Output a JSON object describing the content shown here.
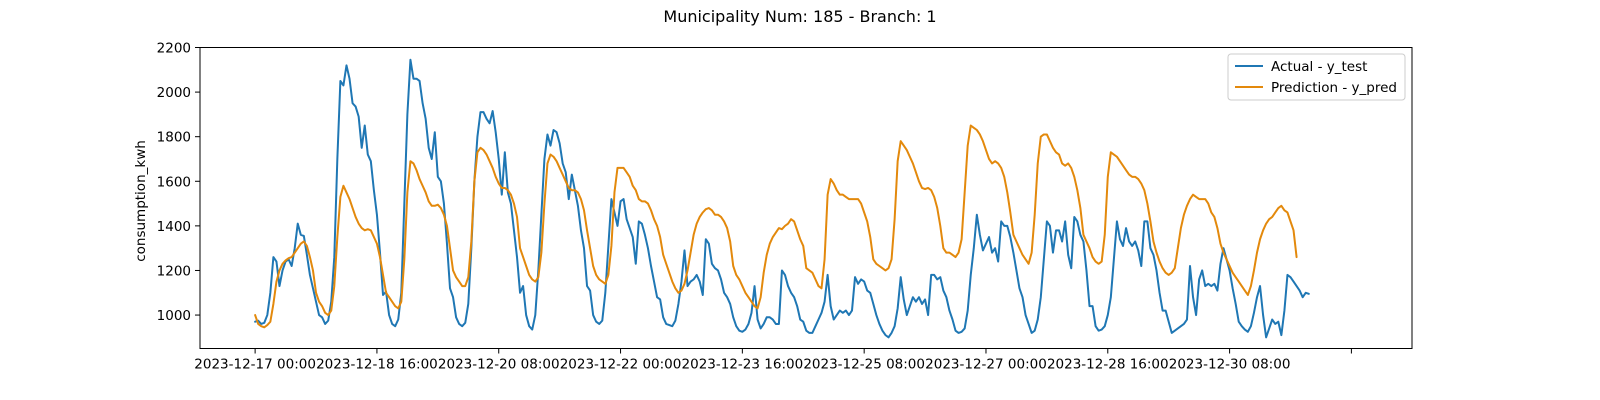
{
  "chart_data": {
    "type": "line",
    "title": "Municipality Num: 185 - Branch: 1",
    "xlabel": "",
    "ylabel": "consumption_kwh",
    "ylim": [
      850,
      2200
    ],
    "yticks": [
      1000,
      1200,
      1400,
      1600,
      1800,
      2000,
      2200
    ],
    "x_start": "2023-12-17 00:00",
    "x_step_hours": 1,
    "x_tick_hours": [
      0,
      40,
      80,
      120,
      160,
      200,
      240,
      280,
      320,
      360
    ],
    "xtick_labels": [
      "2023-12-17 00:00",
      "2023-12-18 16:00",
      "2023-12-20 08:00",
      "2023-12-22 00:00",
      "2023-12-23 16:00",
      "2023-12-25 08:00",
      "2023-12-27 00:00",
      "2023-12-28 16:00",
      "2023-12-30 08:00",
      ""
    ],
    "xlim_hours": [
      -18.1,
      379.9
    ],
    "grid": false,
    "legend_position": "top-right",
    "series": [
      {
        "name": "Actual - y_test",
        "color": "#1f77b4",
        "values": [
          970,
          975,
          960,
          965,
          1000,
          1100,
          1260,
          1240,
          1130,
          1200,
          1240,
          1250,
          1220,
          1300,
          1410,
          1360,
          1355,
          1270,
          1180,
          1120,
          1060,
          1000,
          990,
          960,
          975,
          1060,
          1260,
          1700,
          2050,
          2030,
          2120,
          2060,
          1950,
          1935,
          1890,
          1750,
          1850,
          1720,
          1690,
          1560,
          1450,
          1280,
          1090,
          1105,
          1000,
          960,
          950,
          980,
          1100,
          1500,
          1900,
          2145,
          2060,
          2060,
          2050,
          1950,
          1880,
          1750,
          1700,
          1820,
          1620,
          1600,
          1500,
          1320,
          1120,
          1080,
          990,
          960,
          950,
          965,
          1050,
          1300,
          1600,
          1800,
          1910,
          1910,
          1880,
          1860,
          1915,
          1820,
          1700,
          1540,
          1730,
          1550,
          1500,
          1380,
          1260,
          1100,
          1130,
          1000,
          950,
          935,
          1000,
          1200,
          1450,
          1700,
          1810,
          1760,
          1830,
          1820,
          1770,
          1680,
          1640,
          1520,
          1630,
          1560,
          1490,
          1380,
          1300,
          1130,
          1110,
          1000,
          970,
          960,
          975,
          1100,
          1310,
          1520,
          1460,
          1400,
          1510,
          1520,
          1430,
          1390,
          1350,
          1230,
          1420,
          1410,
          1360,
          1300,
          1220,
          1150,
          1080,
          1070,
          990,
          960,
          955,
          950,
          975,
          1050,
          1150,
          1290,
          1130,
          1150,
          1160,
          1180,
          1150,
          1090,
          1340,
          1320,
          1230,
          1210,
          1200,
          1160,
          1100,
          1080,
          1050,
          990,
          950,
          930,
          925,
          935,
          960,
          1010,
          1130,
          980,
          940,
          960,
          990,
          990,
          980,
          960,
          960,
          1200,
          1180,
          1130,
          1100,
          1080,
          1040,
          980,
          970,
          930,
          920,
          920,
          950,
          980,
          1010,
          1060,
          1180,
          1040,
          980,
          1000,
          1020,
          1010,
          1020,
          1000,
          1020,
          1170,
          1140,
          1160,
          1150,
          1110,
          1100,
          1050,
          1000,
          960,
          930,
          910,
          900,
          920,
          950,
          1030,
          1170,
          1070,
          1000,
          1040,
          1080,
          1060,
          1080,
          1050,
          1070,
          1000,
          1180,
          1180,
          1160,
          1170,
          1110,
          1080,
          1020,
          980,
          930,
          920,
          925,
          940,
          1020,
          1180,
          1300,
          1450,
          1360,
          1290,
          1320,
          1350,
          1280,
          1300,
          1240,
          1420,
          1400,
          1400,
          1350,
          1280,
          1200,
          1120,
          1080,
          1000,
          960,
          920,
          930,
          980,
          1080,
          1250,
          1420,
          1400,
          1280,
          1380,
          1380,
          1330,
          1420,
          1270,
          1210,
          1440,
          1420,
          1360,
          1330,
          1200,
          1040,
          1040,
          950,
          930,
          935,
          950,
          1000,
          1080,
          1250,
          1420,
          1340,
          1310,
          1390,
          1330,
          1310,
          1330,
          1290,
          1220,
          1420,
          1420,
          1300,
          1270,
          1200,
          1100,
          1020,
          1020,
          970,
          920,
          930,
          940,
          950,
          960,
          980,
          1220,
          1080,
          1000,
          1160,
          1200,
          1130,
          1140,
          1130,
          1140,
          1110,
          1230,
          1300,
          1250,
          1200,
          1120,
          1050,
          970,
          950,
          935,
          925,
          950,
          1010,
          1080,
          1130,
          1000,
          900,
          940,
          980,
          960,
          970,
          910,
          1020,
          1180,
          1170,
          1150,
          1130,
          1110,
          1080,
          1100,
          1095
        ]
      },
      {
        "name": "Prediction - y_pred",
        "color": "#e3890c",
        "values": [
          1000,
          960,
          950,
          945,
          955,
          970,
          1050,
          1150,
          1200,
          1230,
          1245,
          1255,
          1260,
          1280,
          1300,
          1320,
          1330,
          1310,
          1260,
          1200,
          1100,
          1060,
          1040,
          1010,
          1000,
          1020,
          1130,
          1350,
          1530,
          1580,
          1550,
          1520,
          1480,
          1440,
          1410,
          1390,
          1380,
          1385,
          1380,
          1350,
          1320,
          1260,
          1180,
          1100,
          1080,
          1060,
          1040,
          1030,
          1060,
          1250,
          1550,
          1690,
          1680,
          1650,
          1610,
          1580,
          1550,
          1510,
          1490,
          1490,
          1495,
          1480,
          1450,
          1400,
          1300,
          1200,
          1170,
          1150,
          1130,
          1130,
          1170,
          1330,
          1600,
          1730,
          1750,
          1740,
          1720,
          1690,
          1660,
          1620,
          1590,
          1570,
          1570,
          1560,
          1540,
          1500,
          1440,
          1300,
          1260,
          1220,
          1180,
          1160,
          1150,
          1170,
          1280,
          1500,
          1680,
          1720,
          1710,
          1690,
          1660,
          1630,
          1600,
          1570,
          1560,
          1560,
          1550,
          1520,
          1470,
          1380,
          1300,
          1220,
          1180,
          1160,
          1150,
          1140,
          1180,
          1310,
          1550,
          1660,
          1660,
          1660,
          1640,
          1620,
          1580,
          1560,
          1520,
          1510,
          1510,
          1500,
          1470,
          1430,
          1400,
          1350,
          1270,
          1230,
          1190,
          1150,
          1120,
          1100,
          1110,
          1140,
          1200,
          1280,
          1360,
          1410,
          1440,
          1460,
          1475,
          1480,
          1470,
          1450,
          1450,
          1440,
          1420,
          1390,
          1330,
          1220,
          1180,
          1160,
          1130,
          1100,
          1080,
          1060,
          1040,
          1030,
          1080,
          1190,
          1270,
          1320,
          1350,
          1370,
          1390,
          1385,
          1400,
          1410,
          1430,
          1420,
          1380,
          1340,
          1310,
          1210,
          1200,
          1190,
          1160,
          1130,
          1120,
          1250,
          1540,
          1610,
          1590,
          1560,
          1540,
          1540,
          1530,
          1520,
          1520,
          1520,
          1520,
          1500,
          1460,
          1420,
          1350,
          1250,
          1230,
          1220,
          1210,
          1200,
          1210,
          1250,
          1430,
          1690,
          1780,
          1760,
          1740,
          1710,
          1680,
          1640,
          1600,
          1570,
          1565,
          1570,
          1560,
          1530,
          1480,
          1400,
          1300,
          1280,
          1280,
          1270,
          1260,
          1280,
          1340,
          1550,
          1760,
          1850,
          1840,
          1830,
          1810,
          1780,
          1740,
          1700,
          1680,
          1690,
          1680,
          1660,
          1620,
          1550,
          1460,
          1360,
          1330,
          1300,
          1270,
          1250,
          1230,
          1280,
          1450,
          1680,
          1800,
          1810,
          1810,
          1780,
          1750,
          1730,
          1720,
          1680,
          1670,
          1680,
          1660,
          1620,
          1560,
          1480,
          1360,
          1330,
          1300,
          1260,
          1240,
          1230,
          1240,
          1360,
          1620,
          1730,
          1720,
          1710,
          1690,
          1670,
          1650,
          1630,
          1620,
          1620,
          1610,
          1590,
          1560,
          1500,
          1420,
          1330,
          1280,
          1240,
          1210,
          1190,
          1180,
          1190,
          1210,
          1300,
          1390,
          1450,
          1490,
          1520,
          1540,
          1530,
          1520,
          1520,
          1520,
          1500,
          1460,
          1440,
          1390,
          1320,
          1280,
          1250,
          1220,
          1190,
          1170,
          1150,
          1130,
          1110,
          1090,
          1130,
          1200,
          1280,
          1340,
          1380,
          1410,
          1430,
          1440,
          1460,
          1480,
          1490,
          1470,
          1460,
          1420,
          1380,
          1260
        ]
      }
    ]
  }
}
